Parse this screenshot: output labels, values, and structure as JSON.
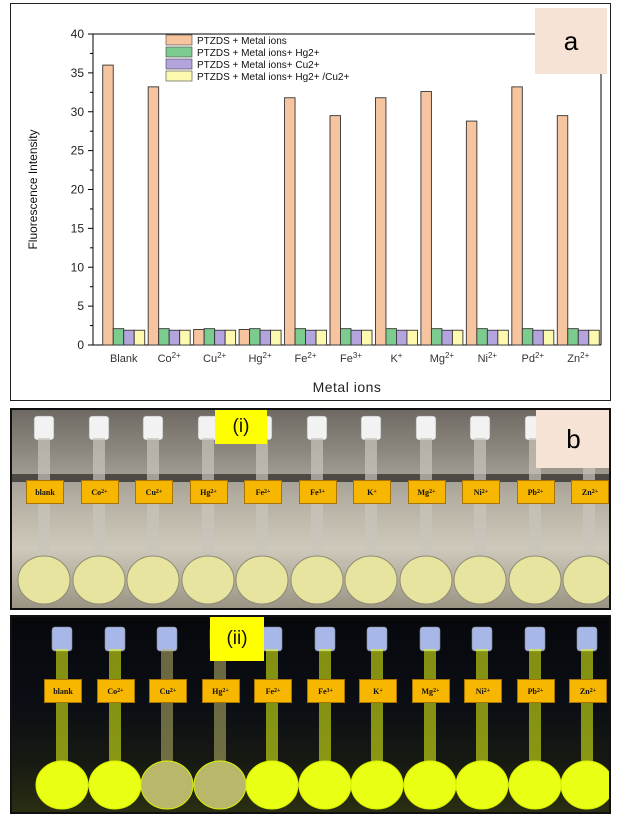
{
  "panel_a": {
    "badge": "a",
    "chart_data": {
      "type": "bar",
      "title": "",
      "xlabel": "Metal ions",
      "ylabel": "Fluorescence Intensity",
      "ylim": [
        0,
        40
      ],
      "yticks": [
        "0",
        "5",
        "10",
        "15",
        "20",
        "25",
        "30",
        "35",
        "40"
      ],
      "categories": [
        "Blank",
        "Co2+",
        "Cu2+",
        "Hg2+",
        "Fe2+",
        "Fe3+",
        "K+",
        "Mg2+",
        "Ni2+",
        "Pd2+",
        "Zn2+"
      ],
      "category_labels": [
        {
          "base": "Blank",
          "sup": ""
        },
        {
          "base": "Co",
          "sup": "2+"
        },
        {
          "base": "Cu",
          "sup": "2+"
        },
        {
          "base": "Hg",
          "sup": "2+"
        },
        {
          "base": "Fe",
          "sup": "2+"
        },
        {
          "base": "Fe",
          "sup": "3+"
        },
        {
          "base": "K",
          "sup": "+"
        },
        {
          "base": "Mg",
          "sup": "2+"
        },
        {
          "base": "Ni",
          "sup": "2+"
        },
        {
          "base": "Pd",
          "sup": "2+"
        },
        {
          "base": "Zn",
          "sup": "2+"
        }
      ],
      "series": [
        {
          "name": "PTZDS + Metal ions",
          "color": "#f6c49f",
          "values": [
            36,
            33.2,
            2,
            2,
            31.8,
            29.5,
            31.8,
            32.6,
            28.8,
            33.2,
            29.5
          ]
        },
        {
          "name": "PTZDS + Metal ions+ Hg2+",
          "color": "#7ccc90",
          "values": [
            2.1,
            2.1,
            2.1,
            2.1,
            2.1,
            2.1,
            2.1,
            2.1,
            2.1,
            2.1,
            2.1
          ]
        },
        {
          "name": "PTZDS + Metal ions+ Cu2+",
          "color": "#b3a4de",
          "values": [
            1.9,
            1.9,
            1.9,
            1.9,
            1.9,
            1.9,
            1.9,
            1.9,
            1.9,
            1.9,
            1.9
          ]
        },
        {
          "name": "PTZDS + Metal ions+ Hg2+ /Cu2+",
          "color": "#fdfab0",
          "values": [
            1.9,
            1.9,
            1.9,
            1.9,
            1.9,
            1.9,
            1.9,
            1.9,
            1.9,
            1.9,
            1.9
          ]
        }
      ],
      "grid": false,
      "legend_position": "top-left"
    }
  },
  "panel_b": {
    "badge": "b",
    "photo_i_label": "(i)",
    "photo_ii_label": "(ii)",
    "flask_labels": [
      {
        "base": "blank",
        "sup": ""
      },
      {
        "base": "Co",
        "sup": "2+"
      },
      {
        "base": "Cu",
        "sup": "2+"
      },
      {
        "base": "Hg",
        "sup": "2+"
      },
      {
        "base": "Fe",
        "sup": "2+"
      },
      {
        "base": "Fe",
        "sup": "3+"
      },
      {
        "base": "K",
        "sup": "+"
      },
      {
        "base": "Mg",
        "sup": "2+"
      },
      {
        "base": "Ni",
        "sup": "2+"
      },
      {
        "base": "Pb",
        "sup": "2+"
      },
      {
        "base": "Zn",
        "sup": "2+"
      }
    ],
    "photo_i_flask_color": "#e7e4a0",
    "photo_ii_bright_color": "#e9ff14",
    "photo_ii_dim_color": "#b9b76a",
    "photo_ii_dim_flasks": [
      2,
      3
    ]
  }
}
